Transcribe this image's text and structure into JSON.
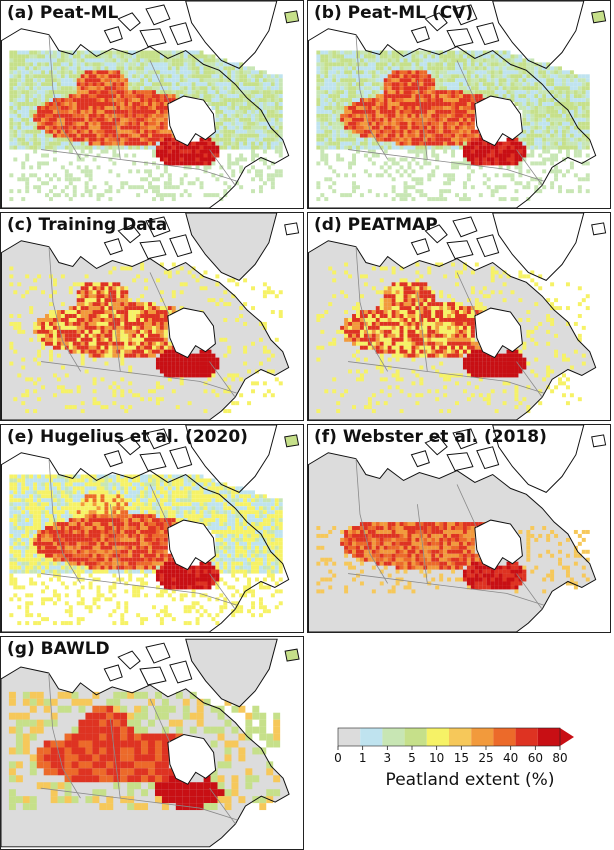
{
  "panels": [
    {
      "label": "(a) Peat-ML",
      "coverage": "full",
      "variant": "ml"
    },
    {
      "label": "(b) Peat-ML (CV)",
      "coverage": "full",
      "variant": "ml"
    },
    {
      "label": "(c) Training Data",
      "coverage": "sparse",
      "variant": "train"
    },
    {
      "label": "(d) PEATMAP",
      "coverage": "sparse",
      "variant": "peatmap"
    },
    {
      "label": "(e) Hugelius et al. (2020)",
      "coverage": "full",
      "variant": "hugelius"
    },
    {
      "label": "(f) Webster et al. (2018)",
      "coverage": "south",
      "variant": "webster"
    },
    {
      "label": "(g) BAWLD",
      "coverage": "north",
      "variant": "bawld"
    }
  ],
  "legend": {
    "title": "Peatland extent (%)",
    "ticks": [
      "0",
      "1",
      "3",
      "5",
      "10",
      "15",
      "25",
      "40",
      "60",
      "80"
    ],
    "colors": [
      "#dcdcdc",
      "#bfe3ef",
      "#c8e6b4",
      "#c6e08a",
      "#f6f266",
      "#f6c85a",
      "#f29a3c",
      "#ec6a2a",
      "#de3322",
      "#c80f14"
    ],
    "extend": "max"
  },
  "colors": {
    "land_nodata": "#dcdcdc",
    "coast": "#111111",
    "borders": "#8a8a8a"
  }
}
